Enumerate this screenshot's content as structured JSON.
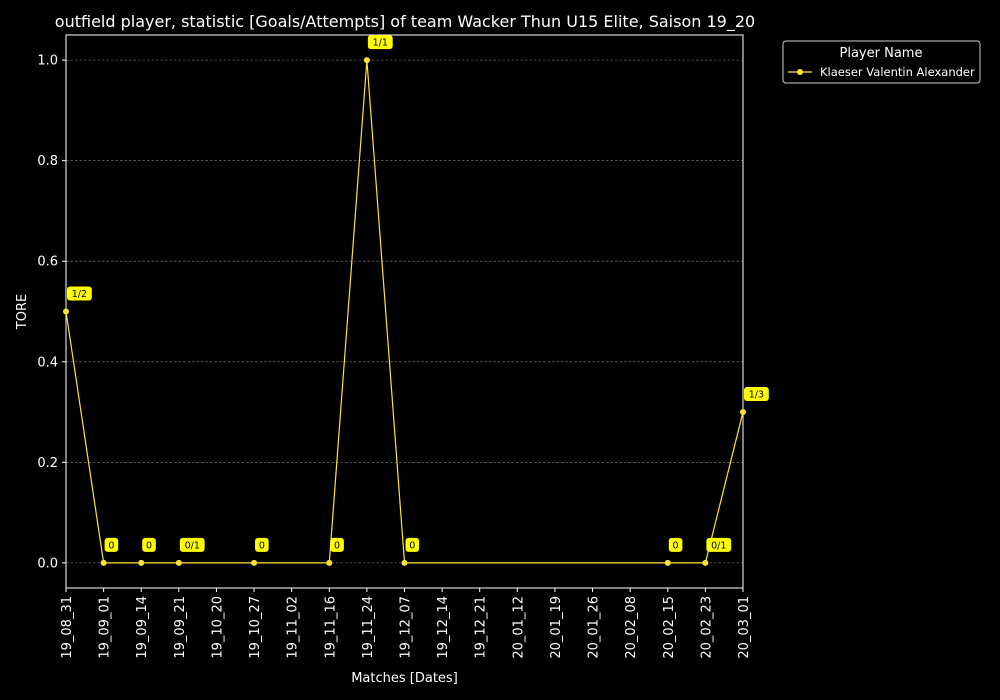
{
  "chart_data": {
    "type": "line",
    "title": "outfield player, statistic [Goals/Attempts] of team Wacker Thun U15 Elite, Saison 19_20",
    "xlabel": "Matches [Dates]",
    "ylabel": "TORE",
    "ylim": [
      -0.05,
      1.05
    ],
    "yticks": [
      "0.0",
      "0.2",
      "0.4",
      "0.6",
      "0.8",
      "1.0"
    ],
    "grid": "horizontal dashed",
    "categories": [
      "19_08_31",
      "19_09_01",
      "19_09_14",
      "19_09_21",
      "19_10_20",
      "19_10_27",
      "19_11_02",
      "19_11_16",
      "19_11_24",
      "19_12_07",
      "19_12_14",
      "19_12_21",
      "20_01_12",
      "20_01_19",
      "20_01_26",
      "20_02_08",
      "20_02_15",
      "20_02_23",
      "20_03_01"
    ],
    "series": [
      {
        "name": "Klaeser Valentin Alexander",
        "color": "#ffe333",
        "points": [
          {
            "x": "19_08_31",
            "y": 0.5,
            "label": "1/2"
          },
          {
            "x": "19_09_01",
            "y": 0.0,
            "label": "0"
          },
          {
            "x": "19_09_14",
            "y": 0.0,
            "label": "0"
          },
          {
            "x": "19_09_21",
            "y": 0.0,
            "label": "0/1"
          },
          {
            "x": "19_10_27",
            "y": 0.0,
            "label": "0"
          },
          {
            "x": "19_11_16",
            "y": 0.0,
            "label": "0"
          },
          {
            "x": "19_11_24",
            "y": 1.0,
            "label": "1/1"
          },
          {
            "x": "19_12_07",
            "y": 0.0,
            "label": "0"
          },
          {
            "x": "20_02_15",
            "y": 0.0,
            "label": "0"
          },
          {
            "x": "20_02_23",
            "y": 0.0,
            "label": "0/1"
          },
          {
            "x": "20_03_01",
            "y": 0.3,
            "label": "1/3"
          }
        ]
      }
    ],
    "legend": {
      "title": "Player Name",
      "placement": "outside top-right"
    }
  }
}
